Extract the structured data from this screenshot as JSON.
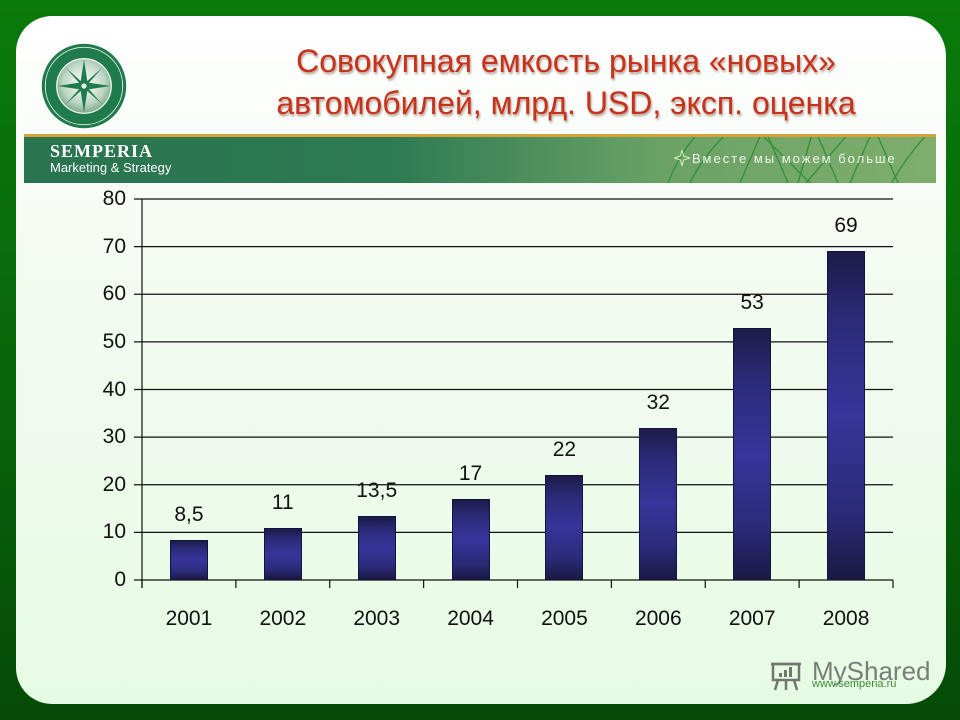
{
  "slide": {
    "title_line1": "Совокупная емкость рынка «новых»",
    "title_line2": "автомобилей, млрд. USD, эксп. оценка",
    "logo": {
      "icon": "compass-star-emblem",
      "ring_text_top": "SEMPERIA",
      "ring_text_bottom": "MARKETING & STRATEGY"
    },
    "banner": {
      "brand": "SEMPERIA",
      "subtitle": "Marketing & Strategy",
      "slogan": "Вместе мы можем больше",
      "slogan_icon": "star-icon"
    },
    "footer": {
      "watermark": "MyShared",
      "watermark_icon": "presentation-board-icon",
      "url": "www.semperia.ru"
    },
    "colors": {
      "title": "#c8311a",
      "bar": "#2b2a78",
      "frame": "#0a7a0a",
      "banner_start": "#2a7450",
      "banner_end": "#7fae6c",
      "banner_border": "#d8a23a"
    }
  },
  "chart_data": {
    "type": "bar",
    "title": "Совокупная емкость рынка «новых» автомобилей, млрд. USD, эксп. оценка",
    "xlabel": "",
    "ylabel": "",
    "categories": [
      "2001",
      "2002",
      "2003",
      "2004",
      "2005",
      "2006",
      "2007",
      "2008"
    ],
    "values": [
      8.5,
      11,
      13.5,
      17,
      22,
      32,
      53,
      69
    ],
    "value_labels": [
      "8,5",
      "11",
      "13,5",
      "17",
      "22",
      "32",
      "53",
      "69"
    ],
    "ylim": [
      0,
      80
    ],
    "yticks": [
      "0",
      "10",
      "20",
      "30",
      "40",
      "50",
      "60",
      "70",
      "80"
    ],
    "grid": true,
    "legend": null
  }
}
